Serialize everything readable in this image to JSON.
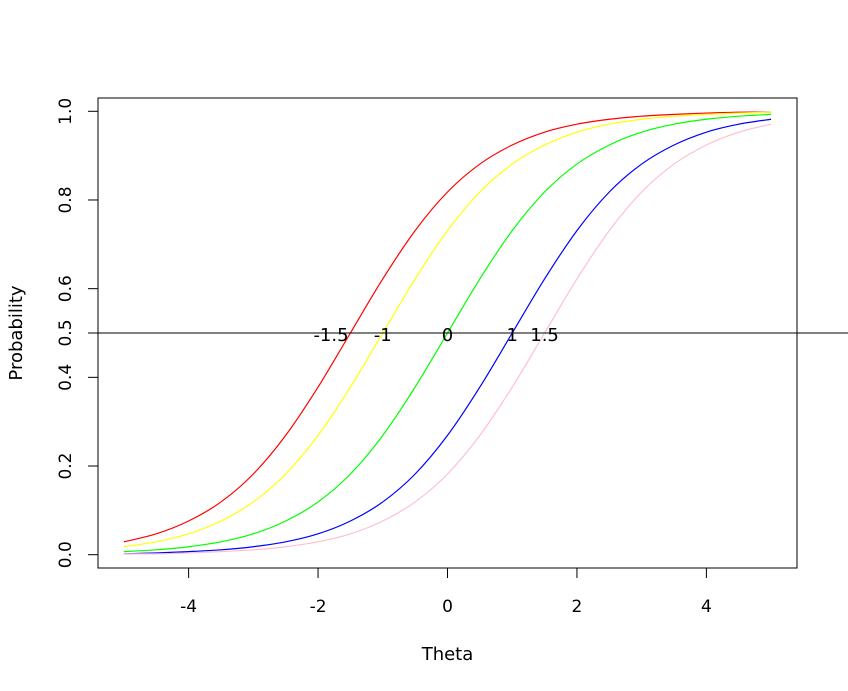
{
  "chart_data": {
    "type": "line",
    "xlabel": "Theta",
    "ylabel": "Probability",
    "xlim": [
      -5.4,
      5.4
    ],
    "ylim": [
      -0.03,
      1.03
    ],
    "x_ticks": [
      -4,
      -2,
      0,
      2,
      4
    ],
    "x_tick_labels": [
      "-4",
      "-2",
      "0",
      "2",
      "4"
    ],
    "y_ticks": [
      0.0,
      0.2,
      0.4,
      0.5,
      0.6,
      0.8,
      1.0
    ],
    "y_tick_labels": [
      "0.0",
      "0.2",
      "0.4",
      "0.5",
      "0.6",
      "0.8",
      "1.0"
    ],
    "grid": false,
    "x": [
      -5.0,
      -4.5,
      -4.0,
      -3.5,
      -3.0,
      -2.5,
      -2.0,
      -1.5,
      -1.0,
      -0.5,
      0.0,
      0.5,
      1.0,
      1.5,
      2.0,
      2.5,
      3.0,
      3.5,
      4.0,
      4.5,
      5.0
    ],
    "series": [
      {
        "color": "#ff0000",
        "values": [
          0.029,
          0.047,
          0.076,
          0.119,
          0.182,
          0.269,
          0.378,
          0.5,
          0.622,
          0.731,
          0.818,
          0.881,
          0.924,
          0.953,
          0.971,
          0.982,
          0.989,
          0.993,
          0.996,
          0.998,
          0.998
        ]
      },
      {
        "color": "#ffff00",
        "values": [
          0.018,
          0.029,
          0.047,
          0.076,
          0.119,
          0.182,
          0.269,
          0.378,
          0.5,
          0.622,
          0.731,
          0.818,
          0.881,
          0.924,
          0.953,
          0.971,
          0.982,
          0.989,
          0.993,
          0.996,
          0.998
        ]
      },
      {
        "color": "#00ff00",
        "values": [
          0.007,
          0.011,
          0.018,
          0.029,
          0.047,
          0.076,
          0.119,
          0.182,
          0.269,
          0.378,
          0.5,
          0.622,
          0.731,
          0.818,
          0.881,
          0.924,
          0.953,
          0.971,
          0.982,
          0.989,
          0.993
        ]
      },
      {
        "color": "#0000ff",
        "values": [
          0.002,
          0.004,
          0.007,
          0.011,
          0.018,
          0.029,
          0.047,
          0.076,
          0.119,
          0.182,
          0.269,
          0.378,
          0.5,
          0.622,
          0.731,
          0.818,
          0.881,
          0.924,
          0.953,
          0.971,
          0.982
        ]
      },
      {
        "color": "#ffc0cb",
        "values": [
          0.002,
          0.002,
          0.004,
          0.007,
          0.011,
          0.018,
          0.029,
          0.047,
          0.076,
          0.119,
          0.182,
          0.269,
          0.378,
          0.5,
          0.622,
          0.731,
          0.818,
          0.881,
          0.924,
          0.953,
          0.971
        ]
      }
    ],
    "reference_line": {
      "y": 0.5,
      "color": "#000000"
    },
    "annotations": [
      {
        "text": "-1.5",
        "x": -1.8,
        "y": 0.5
      },
      {
        "text": "-1",
        "x": -1.0,
        "y": 0.5
      },
      {
        "text": "0",
        "x": 0.0,
        "y": 0.5
      },
      {
        "text": "1",
        "x": 1.0,
        "y": 0.5
      },
      {
        "text": "1.5",
        "x": 1.5,
        "y": 0.5
      }
    ]
  }
}
